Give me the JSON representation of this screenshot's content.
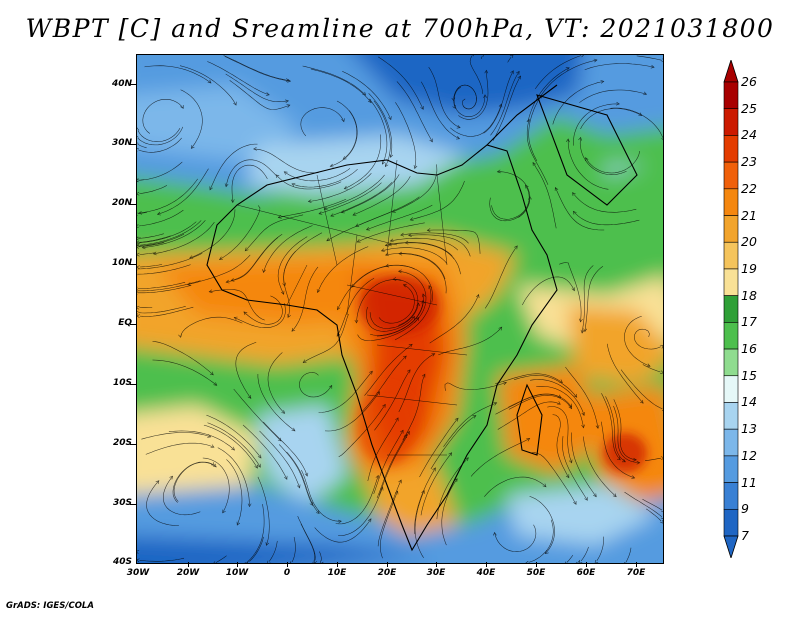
{
  "title": "WBPT [C] and Sreamline at 700hPa, VT: 2021031800",
  "credit": "GrADS: IGES/COLA",
  "lat_labels": [
    "40N",
    "30N",
    "20N",
    "10N",
    "EQ",
    "10S",
    "20S",
    "30S",
    "40S"
  ],
  "lon_labels": [
    "30W",
    "20W",
    "10W",
    "0",
    "10E",
    "20E",
    "30E",
    "40E",
    "50E",
    "60E",
    "70E"
  ],
  "colorbar": {
    "labels": [
      "26",
      "25",
      "24",
      "23",
      "22",
      "21",
      "20",
      "19",
      "18",
      "17",
      "16",
      "15",
      "14",
      "13",
      "12",
      "11",
      "9",
      "7"
    ],
    "colors": [
      "#a80000",
      "#cc1a00",
      "#e43c00",
      "#f0600a",
      "#f5870f",
      "#f2a42c",
      "#f5c45c",
      "#f9e196",
      "#2fa037",
      "#4dbf4d",
      "#8fdc8f",
      "#e6f8f8",
      "#a8d4f0",
      "#7cb7ea",
      "#559be0",
      "#3980d4",
      "#1f66c4"
    ]
  },
  "map": {
    "palette": {
      "deep_blue": "#1f66c4",
      "blue": "#559be0",
      "light_blue": "#a8d4f0",
      "pale": "#e6f8f8",
      "green": "#4dbf4d",
      "light_green": "#8fdc8f",
      "yellow": "#f9e196",
      "tan": "#f2a42c",
      "orange": "#f5870f",
      "red_orange": "#e43c00"
    }
  }
}
